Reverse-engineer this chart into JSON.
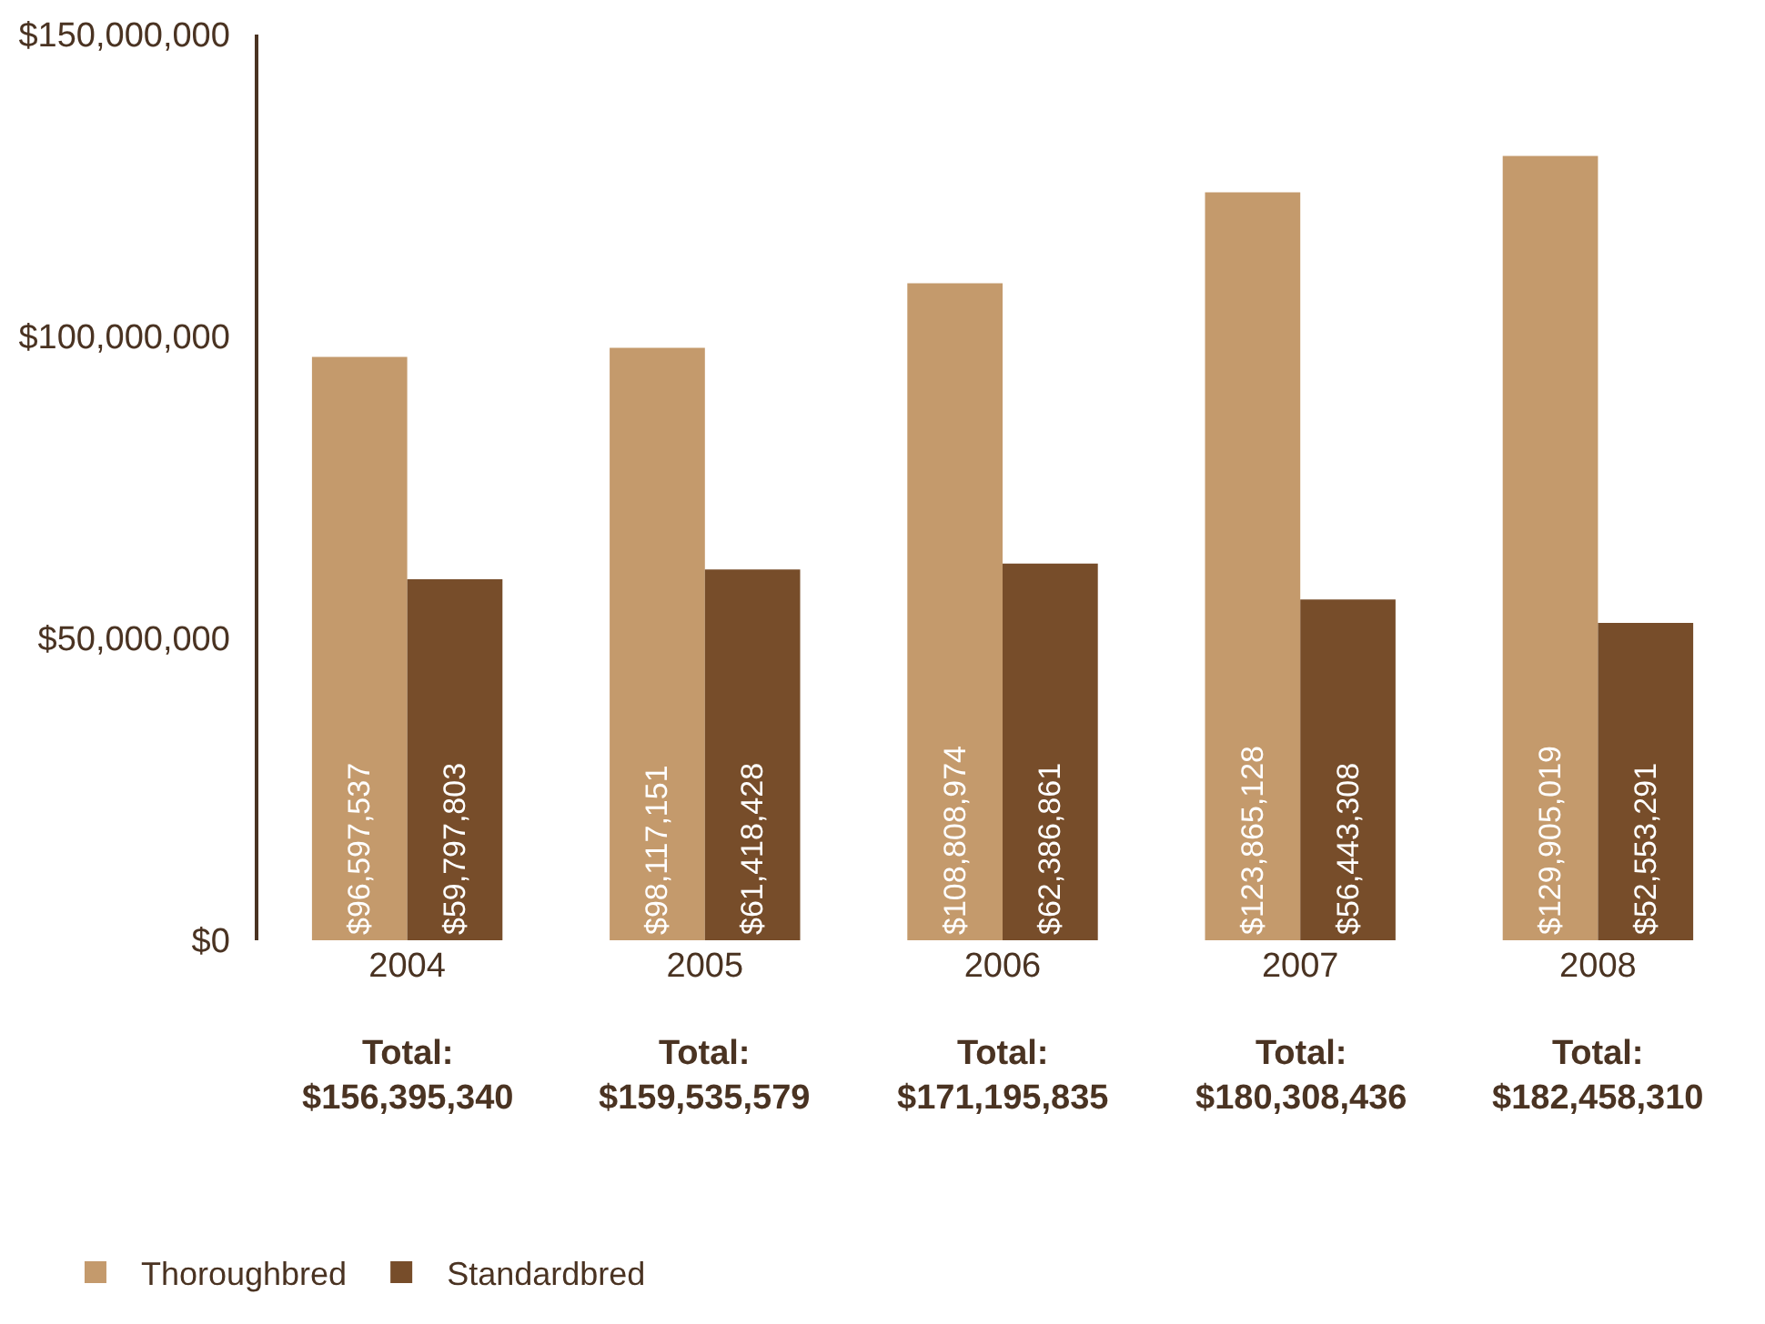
{
  "chart_data": {
    "type": "bar",
    "categories": [
      "2004",
      "2005",
      "2006",
      "2007",
      "2008"
    ],
    "series": [
      {
        "name": "Thoroughbred",
        "color": "#c49a6c",
        "values": [
          96597537,
          98117151,
          108808974,
          123865128,
          129905019
        ],
        "value_labels": [
          "$96,597,537",
          "$98,117,151",
          "$108,808,974",
          "$123,865,128",
          "$129,905,019"
        ]
      },
      {
        "name": "Standardbred",
        "color": "#774d2a",
        "values": [
          59797803,
          61418428,
          62386861,
          56443308,
          52553291
        ],
        "value_labels": [
          "$59,797,803",
          "$61,418,428",
          "$62,386,861",
          "$56,443,308",
          "$52,553,291"
        ]
      }
    ],
    "ylim": [
      0,
      150000000
    ],
    "yticks": [
      {
        "value": 0,
        "label": "$0"
      },
      {
        "value": 50000000,
        "label": "$50,000,000"
      },
      {
        "value": 100000000,
        "label": "$100,000,000"
      },
      {
        "value": 150000000,
        "label": "$150,000,000"
      }
    ],
    "totals": [
      "Total: $156,395,340",
      "Total: $159,535,579",
      "Total: $171,195,835",
      "Total: $180,308,436",
      "Total: $182,458,310"
    ],
    "legend": "bottom left"
  }
}
